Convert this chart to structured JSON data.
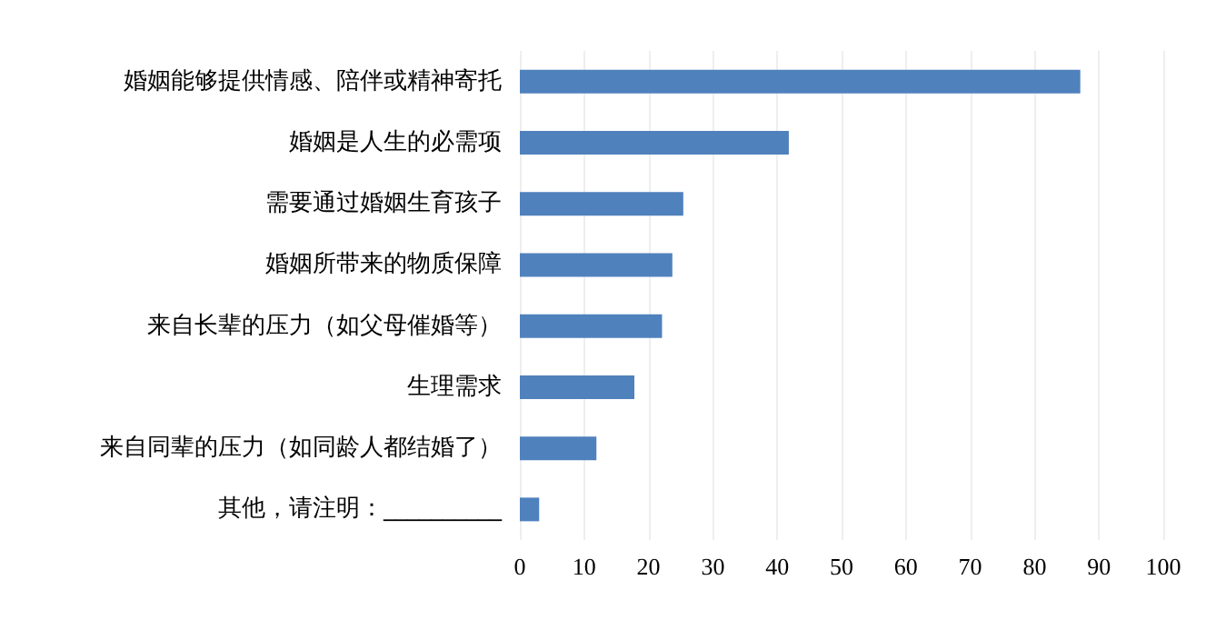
{
  "chart_data": {
    "type": "bar",
    "orientation": "horizontal",
    "categories": [
      "婚姻能够提供情感、陪伴或精神寄托",
      "婚姻是人生的必需项",
      "需要通过婚姻生育孩子",
      "婚姻所带来的物质保障",
      "来自长辈的压力（如父母催婚等）",
      "生理需求",
      "来自同辈的压力（如同龄人都结婚了）",
      "其他，请注明：__________"
    ],
    "values": [
      87.1,
      41.8,
      25.4,
      23.7,
      22.1,
      17.8,
      11.9,
      3.0
    ],
    "color": "#4f81bd",
    "xlim": [
      0,
      100
    ],
    "xticks": [
      0,
      10,
      20,
      30,
      40,
      50,
      60,
      70,
      80,
      90,
      100
    ],
    "grid": "x"
  }
}
